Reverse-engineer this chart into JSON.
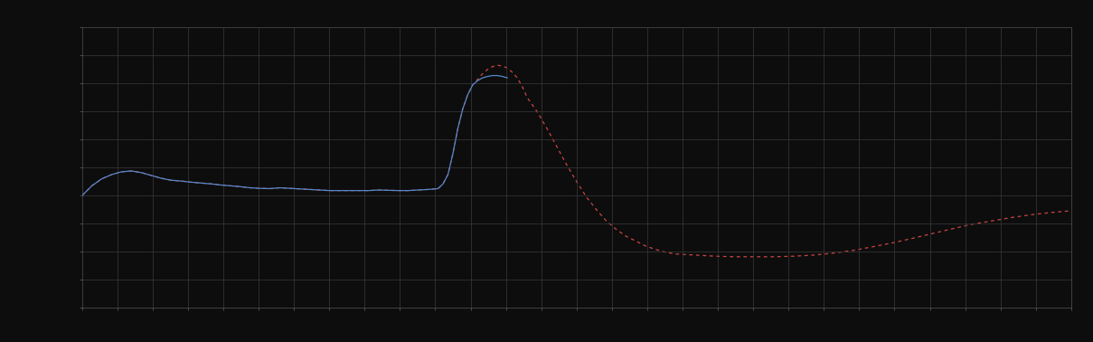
{
  "background_color": "#0d0d0d",
  "plot_bg_color": "#0d0d0d",
  "grid_color": "#3a3a3a",
  "blue_color": "#5588cc",
  "red_color": "#cc4444",
  "xlim": [
    0,
    100
  ],
  "ylim": [
    0,
    10
  ],
  "figsize": [
    12.09,
    3.78
  ],
  "dpi": 100,
  "grid_nx": 28,
  "grid_ny": 10,
  "blue_x": [
    0,
    1,
    2,
    3,
    4,
    5,
    6,
    7,
    8,
    9,
    10,
    11,
    12,
    13,
    14,
    15,
    16,
    17,
    18,
    19,
    20,
    21,
    22,
    23,
    24,
    25,
    26,
    27,
    28,
    29,
    30,
    31,
    32,
    33,
    34,
    35,
    36,
    36.5,
    37,
    37.5,
    38,
    38.5,
    39,
    39.5,
    40,
    40.5,
    41,
    41.5,
    42,
    42.5,
    43
  ],
  "blue_y": [
    4.0,
    4.35,
    4.6,
    4.75,
    4.85,
    4.88,
    4.82,
    4.72,
    4.62,
    4.55,
    4.52,
    4.48,
    4.45,
    4.42,
    4.38,
    4.35,
    4.32,
    4.28,
    4.26,
    4.25,
    4.28,
    4.26,
    4.24,
    4.22,
    4.2,
    4.18,
    4.18,
    4.18,
    4.18,
    4.18,
    4.2,
    4.19,
    4.18,
    4.18,
    4.2,
    4.22,
    4.25,
    4.42,
    4.75,
    5.5,
    6.4,
    7.1,
    7.6,
    7.95,
    8.1,
    8.2,
    8.25,
    8.28,
    8.28,
    8.25,
    8.2
  ],
  "red_x": [
    0,
    1,
    2,
    3,
    4,
    5,
    6,
    7,
    8,
    9,
    10,
    11,
    12,
    13,
    14,
    15,
    16,
    17,
    18,
    19,
    20,
    21,
    22,
    23,
    24,
    25,
    26,
    27,
    28,
    29,
    30,
    31,
    32,
    33,
    34,
    35,
    36,
    36.5,
    37,
    37.5,
    38,
    38.5,
    39,
    39.5,
    40,
    40.5,
    41,
    41.5,
    42,
    42.5,
    43,
    43.5,
    44,
    44.5,
    45,
    46,
    47,
    48,
    49,
    50,
    51,
    52,
    53,
    54,
    55,
    56,
    57,
    58,
    59,
    60,
    62,
    64,
    66,
    68,
    70,
    72,
    74,
    76,
    78,
    80,
    82,
    84,
    86,
    88,
    90,
    92,
    94,
    96,
    98,
    100
  ],
  "red_y": [
    4.0,
    4.35,
    4.6,
    4.75,
    4.85,
    4.88,
    4.82,
    4.72,
    4.62,
    4.55,
    4.52,
    4.48,
    4.45,
    4.42,
    4.38,
    4.35,
    4.32,
    4.28,
    4.26,
    4.25,
    4.28,
    4.26,
    4.24,
    4.22,
    4.2,
    4.18,
    4.18,
    4.18,
    4.18,
    4.18,
    4.2,
    4.19,
    4.18,
    4.18,
    4.2,
    4.22,
    4.25,
    4.42,
    4.75,
    5.5,
    6.4,
    7.1,
    7.6,
    7.95,
    8.15,
    8.35,
    8.5,
    8.6,
    8.65,
    8.62,
    8.55,
    8.4,
    8.2,
    7.9,
    7.5,
    7.0,
    6.4,
    5.75,
    5.1,
    4.5,
    3.95,
    3.5,
    3.1,
    2.8,
    2.55,
    2.38,
    2.2,
    2.08,
    1.98,
    1.92,
    1.88,
    1.84,
    1.82,
    1.82,
    1.82,
    1.84,
    1.88,
    1.95,
    2.05,
    2.18,
    2.32,
    2.48,
    2.65,
    2.82,
    2.98,
    3.1,
    3.22,
    3.32,
    3.4,
    3.46
  ]
}
